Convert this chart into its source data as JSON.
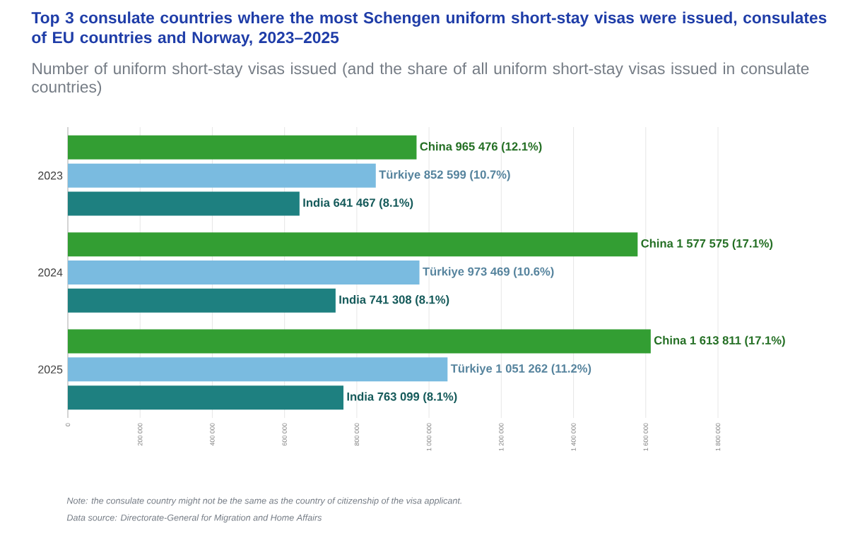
{
  "chart_data": {
    "type": "bar",
    "orientation": "horizontal",
    "title": "Top 3 consulate countries where the most Schengen uniform short-stay visas were issued, consulates of EU countries and Norway, 2023–2025",
    "subtitle": "Number of uniform short-stay visas issued (and the share of all uniform short-stay visas issued in consulate countries)",
    "categories": [
      "2023",
      "2024",
      "2025"
    ],
    "series": [
      {
        "color": "#339e33",
        "values": [
          965476,
          1577575,
          1613811
        ],
        "value_labels": [
          "China 965 476 (12.1%)",
          "China 1 577 575 (17.1%)",
          "China 1 613 811 (17.1%)"
        ]
      },
      {
        "color": "#7abbe0",
        "values": [
          852599,
          973469,
          1051262
        ],
        "value_labels": [
          "Türkiye 852 599 (10.7%)",
          "Türkiye 973 469 (10.6%)",
          "Türkiye 1 051 262 (11.2%)"
        ]
      },
      {
        "color": "#1e8080",
        "values": [
          641467,
          741308,
          763099
        ],
        "value_labels": [
          "India 641 467 (8.1%)",
          "India 741 308 (8.1%)",
          "India 763 099 (8.1%)"
        ]
      }
    ],
    "xlim": [
      0,
      1800000
    ],
    "xticks": [
      0,
      {
        "value": 200000,
        "label": "200 000"
      },
      {
        "value": 400000,
        "label": "400 000"
      },
      {
        "value": 600000,
        "label": "600 000"
      },
      {
        "value": 800000,
        "label": "800 000"
      },
      {
        "value": 1000000,
        "label": "1 000 000"
      },
      {
        "value": 1200000,
        "label": "1 200 000"
      },
      {
        "value": 1400000,
        "label": "1 400 000"
      },
      {
        "value": 1600000,
        "label": "1 600 000"
      },
      {
        "value": 1800000,
        "label": "1 800 000"
      }
    ],
    "grid": "x",
    "annotations": [
      "Note: the consulate country might not be the same as the country of citizenship of the visa applicant.",
      "Data source: Directorate-General for Migration and Home Affairs"
    ]
  }
}
